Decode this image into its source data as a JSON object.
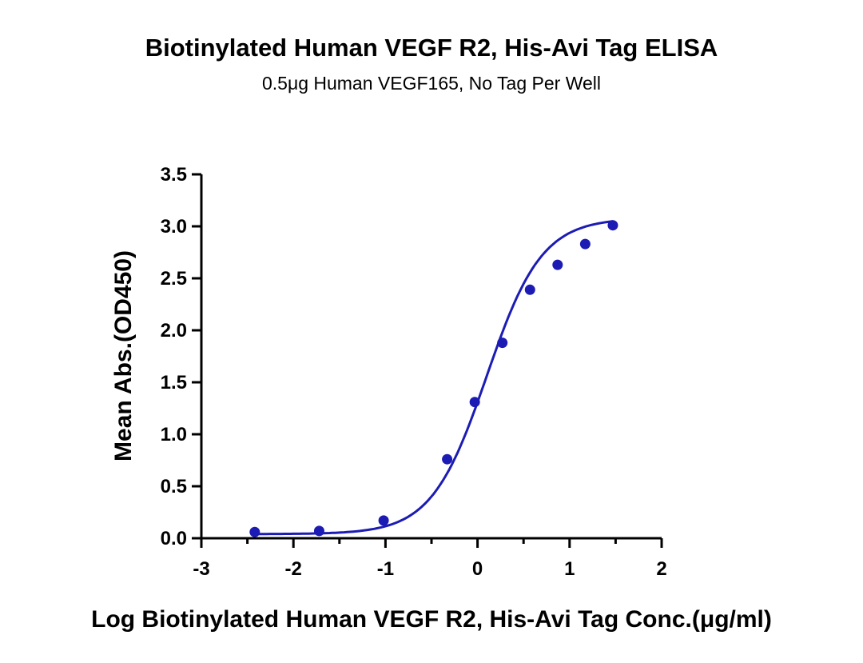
{
  "chart_data": {
    "type": "scatter",
    "title": "Biotinylated Human VEGF R2, His-Avi Tag ELISA",
    "subtitle": "0.5μg Human VEGF165, No Tag Per Well",
    "xlabel": "Log Biotinylated Human VEGF R2, His-Avi Tag Conc.(μg/ml)",
    "ylabel": "Mean Abs.(OD450)",
    "xlim": [
      -3,
      2
    ],
    "ylim": [
      0,
      3.5
    ],
    "x_ticks": [
      "-3",
      "-2",
      "-1",
      "0",
      "1",
      "2"
    ],
    "y_ticks": [
      "0.0",
      "0.5",
      "1.0",
      "1.5",
      "2.0",
      "2.5",
      "3.0",
      "3.5"
    ],
    "grid": false,
    "legend": "none",
    "series": [
      {
        "x": [
          -2.42,
          -1.72,
          -1.02,
          -0.33,
          -0.03,
          0.27,
          0.57,
          0.87,
          1.17,
          1.47
        ],
        "y": [
          0.06,
          0.07,
          0.17,
          0.76,
          1.31,
          1.88,
          2.39,
          2.63,
          2.83,
          3.01
        ],
        "color": "#1c1cb4",
        "fit": "four-parameter logistic"
      }
    ]
  }
}
